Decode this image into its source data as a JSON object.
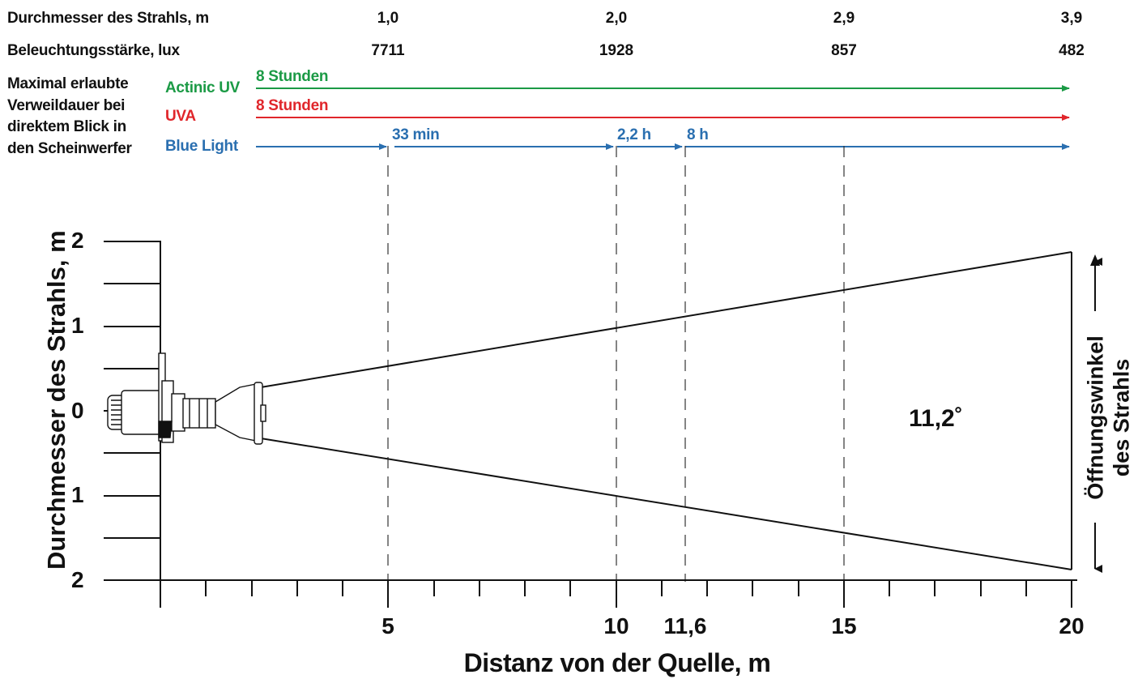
{
  "header": {
    "diameter_label": "Durchmesser des Strahls, m",
    "illuminance_label": "Beleuchtungsstärke, lux",
    "diameters": [
      "1,0",
      "2,0",
      "2,9",
      "3,9"
    ],
    "illuminances": [
      "7711",
      "1928",
      "857",
      "482"
    ],
    "exposure_label_lines": [
      "Maximal erlaubte",
      "Verweildauer bei",
      "direktem Blick in",
      "den Scheinwerfer"
    ]
  },
  "exposure": {
    "actinic": {
      "label": "Actinic UV",
      "duration": "8 Stunden",
      "color": "#1b9a45"
    },
    "uva": {
      "label": "UVA",
      "duration": "8 Stunden",
      "color": "#e0262b"
    },
    "blue": {
      "label": "Blue Light",
      "color": "#2a6fb0",
      "segments": [
        "33 min",
        "2,2 h",
        "8 h"
      ]
    }
  },
  "chart_data": {
    "type": "beam-diagram",
    "xlabel": "Distanz von der Quelle, m",
    "ylabel": "Durchmesser des Strahls, m",
    "x_ticks": [
      "5",
      "10",
      "11,6",
      "15",
      "20"
    ],
    "x_tick_values": [
      5,
      10,
      11.6,
      15,
      20
    ],
    "y_ticks": [
      "2",
      "1",
      "0",
      "1",
      "2"
    ],
    "xlim": [
      0,
      20
    ],
    "ylim": [
      -2,
      2
    ],
    "beam_angle": "11,2˚",
    "beam_angle_label_lines": [
      "Öffnungswinkel",
      "des Strahls"
    ],
    "dashed_markers_x": [
      5,
      10,
      11.6,
      15
    ]
  }
}
